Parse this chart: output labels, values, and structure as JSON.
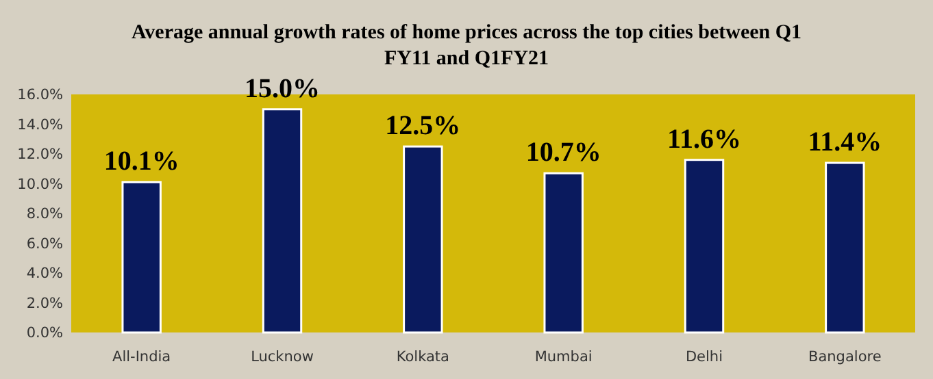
{
  "chart_data": {
    "type": "bar",
    "title": "Average annual growth rates of home prices across the top cities between Q1 FY11 and Q1FY21",
    "categories": [
      "All-India",
      "Lucknow",
      "Kolkata",
      "Mumbai",
      "Delhi",
      "Bangalore"
    ],
    "values": [
      10.1,
      15.0,
      12.5,
      10.7,
      11.6,
      11.4
    ],
    "value_labels": [
      "10.1%",
      "15.0%",
      "12.5%",
      "10.7%",
      "11.6%",
      "11.4%"
    ],
    "color": "#0a1a5e",
    "ylim": [
      0,
      16
    ],
    "yticks": [
      {
        "value": 0,
        "label": "0.0%"
      },
      {
        "value": 2,
        "label": "2.0%"
      },
      {
        "value": 4,
        "label": "4.0%"
      },
      {
        "value": 6,
        "label": "6.0%"
      },
      {
        "value": 8,
        "label": "8.0%"
      },
      {
        "value": 10,
        "label": "10.0%"
      },
      {
        "value": 12,
        "label": "12.0%"
      },
      {
        "value": 14,
        "label": "14.0%"
      },
      {
        "value": 16,
        "label": "16.0%"
      }
    ],
    "grid": false
  }
}
